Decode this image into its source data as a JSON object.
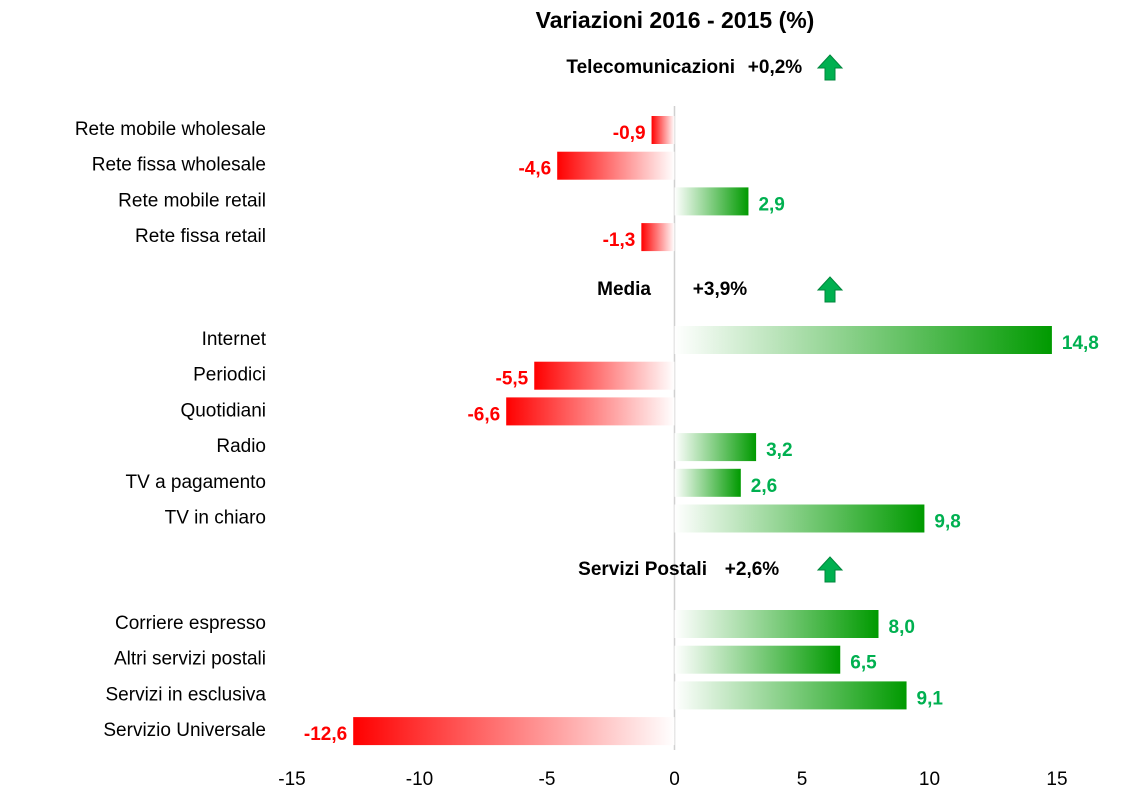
{
  "chart_data": {
    "type": "bar",
    "orientation": "horizontal",
    "title": "Variazioni 2016 - 2015 (%)",
    "xlim": [
      -15,
      15
    ],
    "xticks": [
      -15,
      -10,
      -5,
      0,
      5,
      10,
      15
    ],
    "positive_color": "#009a00",
    "negative_color": "#ff0000",
    "positive_label_color": "#00b050",
    "negative_label_color": "#ff0000",
    "groups": [
      {
        "name": "Telecomunicazioni",
        "total": 0.2,
        "total_label": "+0,2%",
        "categories": [
          "Rete mobile wholesale",
          "Rete fissa wholesale",
          "Rete mobile retail",
          "Rete fissa retail"
        ],
        "values": [
          -0.9,
          -4.6,
          2.9,
          -1.3
        ],
        "value_labels": [
          "-0,9",
          "-4,6",
          "2,9",
          "-1,3"
        ]
      },
      {
        "name": "Media",
        "total": 3.9,
        "total_label": "+3,9%",
        "categories": [
          "Internet",
          "Periodici",
          "Quotidiani",
          "Radio",
          "TV a pagamento",
          "TV in chiaro"
        ],
        "values": [
          14.8,
          -5.5,
          -6.6,
          3.2,
          2.6,
          9.8
        ],
        "value_labels": [
          "14,8",
          "-5,5",
          "-6,6",
          "3,2",
          "2,6",
          "9,8"
        ]
      },
      {
        "name": "Servizi Postali",
        "total": 2.6,
        "total_label": "+2,6%",
        "categories": [
          "Corriere espresso",
          "Altri servizi postali",
          "Servizi in esclusiva",
          "Servizio Universale"
        ],
        "values": [
          8.0,
          6.5,
          9.1,
          -12.6
        ],
        "value_labels": [
          "8,0",
          "6,5",
          "9,1",
          "-12,6"
        ]
      }
    ]
  }
}
